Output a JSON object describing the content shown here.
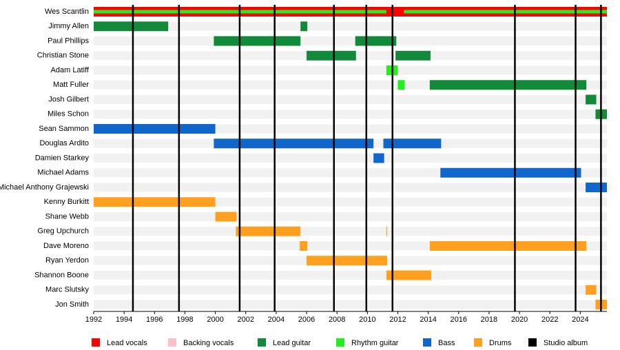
{
  "chart_data": {
    "type": "timeline",
    "xlim": [
      1992,
      2025.75
    ],
    "xticks": [
      1992,
      1994,
      1996,
      1998,
      2000,
      2002,
      2004,
      2006,
      2008,
      2010,
      2012,
      2014,
      2016,
      2018,
      2020,
      2022,
      2024
    ],
    "roles": [
      {
        "name": "Lead vocals",
        "color": "#ff0000"
      },
      {
        "name": "Backing vocals",
        "color": "#ffc0cb"
      },
      {
        "name": "Lead guitar",
        "color": "#138a3a"
      },
      {
        "name": "Rhythm guitar",
        "color": "#22ee22"
      },
      {
        "name": "Bass",
        "color": "#1166cc"
      },
      {
        "name": "Drums",
        "color": "#ffa020"
      }
    ],
    "albums": {
      "name": "Studio album",
      "color": "#000000",
      "values": [
        1994.58,
        1997.61,
        2001.6,
        2003.9,
        2007.8,
        2009.93,
        2011.65,
        2019.7,
        2023.69,
        2025.36
      ]
    },
    "members": [
      {
        "name": "Wes Scantlin",
        "periods": [
          {
            "role": "Lead vocals",
            "start": 1992,
            "end": 2025.75
          },
          {
            "role": "Rhythm guitar",
            "start": 1992,
            "end": 2011.25
          },
          {
            "role": "Rhythm guitar",
            "start": 2012.4,
            "end": 2025.75
          }
        ]
      },
      {
        "name": "Jimmy Allen",
        "periods": [
          {
            "role": "Lead guitar",
            "start": 1992,
            "end": 1996.9
          },
          {
            "role": "Lead guitar",
            "start": 2005.6,
            "end": 2006.05
          }
        ]
      },
      {
        "name": "Paul Phillips",
        "periods": [
          {
            "role": "Lead guitar",
            "start": 1999.9,
            "end": 2005.6
          },
          {
            "role": "Lead guitar",
            "start": 2009.2,
            "end": 2011.9
          }
        ]
      },
      {
        "name": "Christian Stone",
        "periods": [
          {
            "role": "Lead guitar",
            "start": 2006,
            "end": 2009.25
          },
          {
            "role": "Lead guitar",
            "start": 2011.85,
            "end": 2014.15
          }
        ]
      },
      {
        "name": "Adam Latiff",
        "periods": [
          {
            "role": "Rhythm guitar",
            "start": 2011.25,
            "end": 2012
          }
        ]
      },
      {
        "name": "Matt Fuller",
        "periods": [
          {
            "role": "Rhythm guitar",
            "start": 2012,
            "end": 2012.45
          },
          {
            "role": "Lead guitar",
            "start": 2014.1,
            "end": 2024.4
          }
        ]
      },
      {
        "name": "Josh Gilbert",
        "periods": [
          {
            "role": "Lead guitar",
            "start": 2024.35,
            "end": 2025.05
          }
        ]
      },
      {
        "name": "Miles Schon",
        "periods": [
          {
            "role": "Lead guitar",
            "start": 2025,
            "end": 2025.75
          }
        ]
      },
      {
        "name": "Sean Sammon",
        "periods": [
          {
            "role": "Bass",
            "start": 1992,
            "end": 2000
          }
        ]
      },
      {
        "name": "Douglas Ardito",
        "periods": [
          {
            "role": "Bass",
            "start": 1999.9,
            "end": 2010.4
          },
          {
            "role": "Bass",
            "start": 2011.05,
            "end": 2014.85
          }
        ]
      },
      {
        "name": "Damien Starkey",
        "periods": [
          {
            "role": "Bass",
            "start": 2010.4,
            "end": 2011.1
          }
        ]
      },
      {
        "name": "Michael Adams",
        "periods": [
          {
            "role": "Bass",
            "start": 2014.8,
            "end": 2024.05
          }
        ]
      },
      {
        "name": "Michael Anthony Grajewski",
        "periods": [
          {
            "role": "Bass",
            "start": 2024.35,
            "end": 2025.75
          }
        ]
      },
      {
        "name": "Kenny Burkitt",
        "periods": [
          {
            "role": "Drums",
            "start": 1992,
            "end": 2000
          }
        ]
      },
      {
        "name": "Shane Webb",
        "periods": [
          {
            "role": "Drums",
            "start": 2000,
            "end": 2001.4
          }
        ]
      },
      {
        "name": "Greg Upchurch",
        "periods": [
          {
            "role": "Drums",
            "start": 2001.35,
            "end": 2005.6
          },
          {
            "role": "Drums",
            "start": 2011.25,
            "end": 2011.3
          }
        ]
      },
      {
        "name": "Dave Moreno",
        "periods": [
          {
            "role": "Drums",
            "start": 2005.55,
            "end": 2006.05
          },
          {
            "role": "Drums",
            "start": 2014.1,
            "end": 2024.4
          }
        ]
      },
      {
        "name": "Ryan Yerdon",
        "periods": [
          {
            "role": "Drums",
            "start": 2006,
            "end": 2011.3
          }
        ]
      },
      {
        "name": "Shannon Boone",
        "periods": [
          {
            "role": "Drums",
            "start": 2011.25,
            "end": 2014.2
          }
        ]
      },
      {
        "name": "Marc Slutsky",
        "periods": [
          {
            "role": "Drums",
            "start": 2024.35,
            "end": 2025.05
          }
        ]
      },
      {
        "name": "Jon Smith",
        "periods": [
          {
            "role": "Drums",
            "start": 2025,
            "end": 2025.75
          }
        ]
      }
    ]
  }
}
